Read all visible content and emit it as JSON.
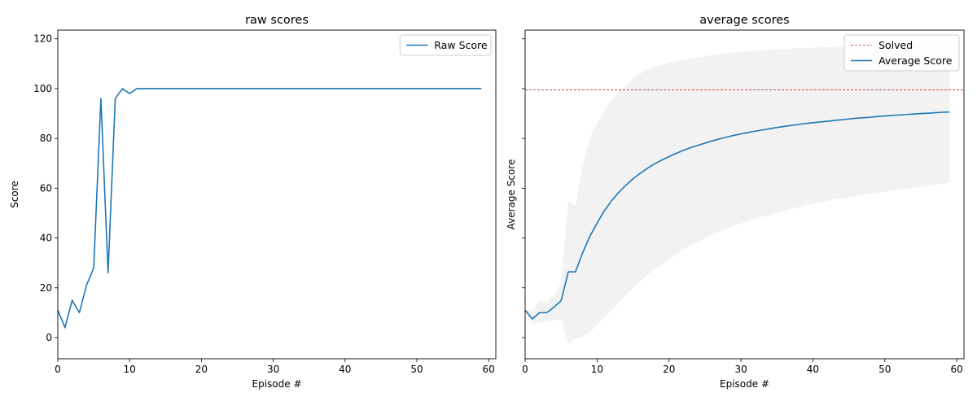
{
  "chart_data": [
    {
      "type": "line",
      "title": "raw scores",
      "xlabel": "Episode #",
      "ylabel": "Score",
      "xlim": [
        0,
        61
      ],
      "ylim": [
        -8.5,
        123.5
      ],
      "xticks": [
        0,
        10,
        20,
        30,
        40,
        50,
        60
      ],
      "yticks": [
        0,
        20,
        40,
        60,
        80,
        100,
        120
      ],
      "legend": "top-right",
      "grid": false,
      "series": [
        {
          "name": "Raw Score",
          "color": "#1f77b4",
          "x": [
            0,
            1,
            2,
            3,
            4,
            5,
            6,
            7,
            8,
            9,
            10,
            11,
            12,
            13,
            14,
            15,
            16,
            17,
            18,
            19,
            20,
            21,
            22,
            23,
            24,
            25,
            26,
            27,
            28,
            29,
            30,
            31,
            32,
            33,
            34,
            35,
            36,
            37,
            38,
            39,
            40,
            41,
            42,
            43,
            44,
            45,
            46,
            47,
            48,
            49,
            50,
            51,
            52,
            53,
            54,
            55,
            56,
            57,
            58,
            59
          ],
          "y": [
            11,
            4,
            15,
            10,
            21,
            28,
            96,
            26,
            96,
            100,
            98,
            100,
            100,
            100,
            100,
            100,
            100,
            100,
            100,
            100,
            100,
            100,
            100,
            100,
            100,
            100,
            100,
            100,
            100,
            100,
            100,
            100,
            100,
            100,
            100,
            100,
            100,
            100,
            100,
            100,
            100,
            100,
            100,
            100,
            100,
            100,
            100,
            100,
            100,
            100,
            100,
            100,
            100,
            100,
            100,
            100,
            100,
            100,
            100,
            100
          ]
        }
      ]
    },
    {
      "type": "line",
      "title": "average scores",
      "xlabel": "Episode #",
      "ylabel": "Average Score",
      "xlim": [
        0,
        61
      ],
      "ylim": [
        -8.5,
        123.5
      ],
      "xticks": [
        0,
        10,
        20,
        30,
        40,
        50,
        60
      ],
      "legend": "top-right",
      "grid": false,
      "shared_y": true,
      "hline": {
        "name": "Solved",
        "y": 99.5,
        "color": "#d62728",
        "style": "dashed"
      },
      "series": [
        {
          "name": "Average Score",
          "color": "#1f77b4",
          "x": [
            0,
            1,
            2,
            3,
            4,
            5,
            6,
            7,
            8,
            9,
            10,
            11,
            12,
            13,
            14,
            15,
            16,
            17,
            18,
            19,
            20,
            21,
            22,
            23,
            24,
            25,
            26,
            27,
            28,
            29,
            30,
            31,
            32,
            33,
            34,
            35,
            36,
            37,
            38,
            39,
            40,
            41,
            42,
            43,
            44,
            45,
            46,
            47,
            48,
            49,
            50,
            51,
            52,
            53,
            54,
            55,
            56,
            57,
            58,
            59
          ],
          "y": [
            11,
            7.5,
            10,
            10,
            12.2,
            14.8,
            26.4,
            26.4,
            34.1,
            40.7,
            46.0,
            50.9,
            54.9,
            58.3,
            61.2,
            63.8,
            66.0,
            68.0,
            69.8,
            71.3,
            72.7,
            74.0,
            75.2,
            76.3,
            77.2,
            78.1,
            79.0,
            79.8,
            80.5,
            81.2,
            81.8,
            82.4,
            82.9,
            83.4,
            83.9,
            84.4,
            84.8,
            85.2,
            85.6,
            86.0,
            86.3,
            86.6,
            86.9,
            87.2,
            87.5,
            87.8,
            88.1,
            88.3,
            88.5,
            88.8,
            89.0,
            89.2,
            89.4,
            89.6,
            89.8,
            90.0,
            90.1,
            90.3,
            90.5,
            90.6
          ]
        }
      ],
      "band": {
        "color": "#f2f2f2",
        "upper": [
          11,
          11,
          15,
          14,
          17,
          22,
          55,
          53,
          69,
          80,
          86,
          91,
          95,
          99,
          101,
          104,
          106,
          107.5,
          108.5,
          109.5,
          110.3,
          111,
          111.6,
          112.2,
          112.7,
          113.1,
          113.5,
          113.9,
          114.2,
          114.5,
          114.8,
          115,
          115.2,
          115.4,
          115.6,
          115.8,
          116,
          116.1,
          116.2,
          116.3,
          116.4,
          116.5,
          116.6,
          116.7,
          116.8,
          116.9,
          116.9,
          117,
          117,
          117.1,
          117.1,
          117.2,
          117.2,
          117.3,
          117.3,
          117.3,
          117.4,
          117.4,
          117.4,
          117.5
        ],
        "lower": [
          11,
          5.5,
          6,
          6.5,
          7,
          7.5,
          -2.5,
          -0.5,
          0.5,
          2,
          5,
          8,
          11,
          14,
          17,
          20,
          22.5,
          25,
          27.5,
          29.5,
          31.5,
          33.5,
          35.5,
          37,
          38.5,
          40,
          41.3,
          42.5,
          43.7,
          44.8,
          45.8,
          46.8,
          47.7,
          48.6,
          49.4,
          50.2,
          51,
          51.7,
          52.4,
          53.1,
          53.7,
          54.3,
          54.9,
          55.4,
          55.9,
          56.4,
          56.9,
          57.4,
          57.8,
          58.2,
          58.6,
          59,
          59.4,
          59.8,
          60.2,
          60.6,
          61,
          61.4,
          61.8,
          62.5
        ]
      }
    }
  ]
}
